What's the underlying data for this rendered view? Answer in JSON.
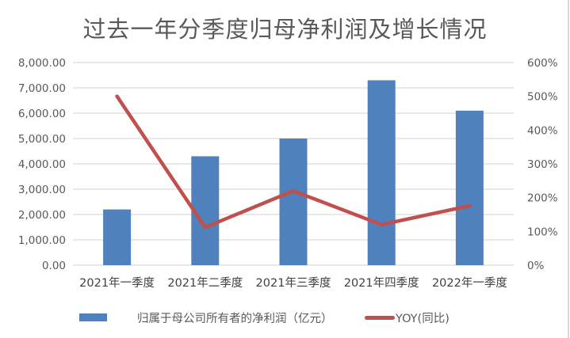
{
  "chart_data": {
    "type": "bar+line",
    "title": "过去一年分季度归母净利润及增长情况",
    "categories": [
      "2021年一季度",
      "2021年二季度",
      "2021年三季度",
      "2021年四季度",
      "2022年一季度"
    ],
    "series": [
      {
        "name": "归属于母公司所有者的净利润（亿元）",
        "type": "bar",
        "axis": "left",
        "color": "#4f81bd",
        "values": [
          2200,
          4300,
          5000,
          7300,
          6100
        ]
      },
      {
        "name": "YOY(同比)",
        "type": "line",
        "axis": "right",
        "color": "#c0504d",
        "values": [
          500,
          112,
          220,
          120,
          176
        ],
        "unit": "%"
      }
    ],
    "left_axis": {
      "ylim": [
        0,
        8000
      ],
      "ticks": [
        "0.00",
        "1,000.00",
        "2,000.00",
        "3,000.00",
        "4,000.00",
        "5,000.00",
        "6,000.00",
        "7,000.00",
        "8,000.00"
      ]
    },
    "right_axis": {
      "ylim": [
        0,
        600
      ],
      "ticks": [
        "0%",
        "100%",
        "200%",
        "300%",
        "400%",
        "500%",
        "600%"
      ]
    },
    "grid": true,
    "legend_position": "bottom",
    "xlabel": "",
    "ylabel": ""
  },
  "legend": {
    "bar_label": "归属于母公司所有者的净利润（亿元）",
    "line_label": "YOY(同比)"
  }
}
